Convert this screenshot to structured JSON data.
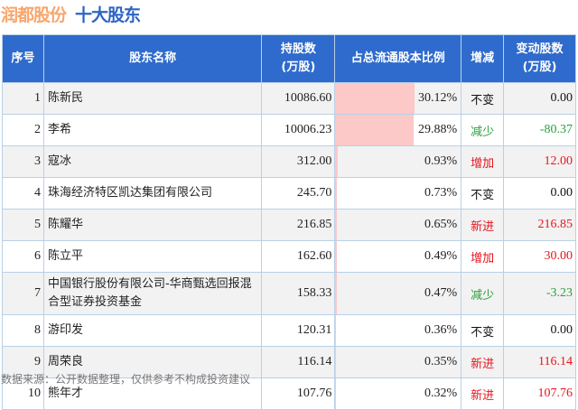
{
  "title": {
    "company": "润都股份",
    "subtitle": "十大股东"
  },
  "headers": [
    "序号",
    "股东名称",
    "持股数\n(万股)",
    "占总流通股本比例",
    "增减",
    "变动股数\n(万股)"
  ],
  "colors": {
    "increase": "#e8141e",
    "decrease": "#2aa03c",
    "unchanged": "#111111",
    "bar": "#fcc8c8"
  },
  "rows": [
    {
      "no": "1",
      "name": "陈新民",
      "shares": "10086.60",
      "pct": "30.12%",
      "pct_value": 30.12,
      "change": "不变",
      "delta": "0.00",
      "dir": "unchanged"
    },
    {
      "no": "2",
      "name": "李希",
      "shares": "10006.23",
      "pct": "29.88%",
      "pct_value": 29.88,
      "change": "减少",
      "delta": "-80.37",
      "dir": "decrease"
    },
    {
      "no": "3",
      "name": "寇冰",
      "shares": "312.00",
      "pct": "0.93%",
      "pct_value": 0.93,
      "change": "增加",
      "delta": "12.00",
      "dir": "increase"
    },
    {
      "no": "4",
      "name": "珠海经济特区凯达集团有限公司",
      "shares": "245.70",
      "pct": "0.73%",
      "pct_value": 0.73,
      "change": "不变",
      "delta": "0.00",
      "dir": "unchanged"
    },
    {
      "no": "5",
      "name": "陈耀华",
      "shares": "216.85",
      "pct": "0.65%",
      "pct_value": 0.65,
      "change": "新进",
      "delta": "216.85",
      "dir": "increase"
    },
    {
      "no": "6",
      "name": "陈立平",
      "shares": "162.60",
      "pct": "0.49%",
      "pct_value": 0.49,
      "change": "增加",
      "delta": "30.00",
      "dir": "increase"
    },
    {
      "no": "7",
      "name": "中国银行股份有限公司-华商甄选回报混合型证券投资基金",
      "shares": "158.33",
      "pct": "0.47%",
      "pct_value": 0.47,
      "change": "减少",
      "delta": "-3.23",
      "dir": "decrease"
    },
    {
      "no": "8",
      "name": "游印发",
      "shares": "120.31",
      "pct": "0.36%",
      "pct_value": 0.36,
      "change": "不变",
      "delta": "0.00",
      "dir": "unchanged"
    },
    {
      "no": "9",
      "name": "周荣良",
      "shares": "116.14",
      "pct": "0.35%",
      "pct_value": 0.35,
      "change": "新进",
      "delta": "116.14",
      "dir": "increase"
    },
    {
      "no": "10",
      "name": "熊年才",
      "shares": "107.76",
      "pct": "0.32%",
      "pct_value": 0.32,
      "change": "新进",
      "delta": "107.76",
      "dir": "increase"
    }
  ],
  "footer": "数据来源：公开数据整理，仅供参考不构成投资建议"
}
